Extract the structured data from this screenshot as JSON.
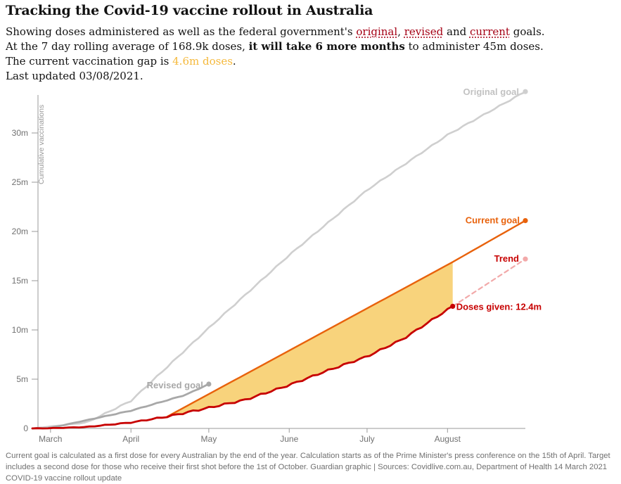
{
  "title": "Tracking the Covid-19 vaccine rollout in Australia",
  "subtitle": {
    "l1_pre": "Showing doses administered as well as the federal government's ",
    "l1_original": "original",
    "l1_sep": ", ",
    "l1_revised": "revised",
    "l1_and": " and ",
    "l1_current": "current",
    "l1_post": " goals.",
    "l2_pre": "At the 7 day rolling average of 168.9k doses, ",
    "l2_bold": "it will take 6 more months",
    "l2_post": " to administer 45m doses.",
    "l3_pre": "The current vaccination gap is ",
    "l3_gap": "4.6m doses",
    "l3_post": ".",
    "l4": "Last updated 03/08/2021."
  },
  "footnote": "Current goal is calculated as a first dose for every Australian by the end of the year. Calculation starts as of the Prime Minister's press conference on the 15th of April. Target includes a second dose for those who receive their first shot before the 1st of October. Guardian graphic | Sources: Covidlive.com.au, Department of Health 14 March 2021 COVID-19 vaccine rollout update",
  "colors": {
    "original": "#cfcfcf",
    "revised": "#a8a8a8",
    "current": "#e8620c",
    "doses": "#c70000",
    "trend": "#f2a9a9",
    "gap_fill": "#f8d37c",
    "gap_text": "#f5b93d"
  },
  "chart_data": {
    "type": "line",
    "ylabel": "Cumulative vaccinations",
    "xlabel": "",
    "y_tick_values": [
      0,
      5,
      10,
      15,
      20,
      25,
      30
    ],
    "y_tick_labels": [
      "0",
      "5m",
      "10m",
      "15m",
      "20m",
      "25m",
      "30m"
    ],
    "ylim": [
      0,
      34
    ],
    "x_ticks": [
      {
        "date": "2021-03-01",
        "label": "March"
      },
      {
        "date": "2021-04-01",
        "label": "April"
      },
      {
        "date": "2021-05-01",
        "label": "May"
      },
      {
        "date": "2021-06-01",
        "label": "June"
      },
      {
        "date": "2021-07-01",
        "label": "July"
      },
      {
        "date": "2021-08-01",
        "label": "August"
      }
    ],
    "xlim": [
      "2021-02-22",
      "2021-08-31"
    ],
    "series": [
      {
        "name": "Original goal",
        "key": "original",
        "style": "line",
        "x": [
          "2021-02-22",
          "2021-03-15",
          "2021-04-01",
          "2021-05-01",
          "2021-06-01",
          "2021-07-01",
          "2021-08-01",
          "2021-08-31"
        ],
        "y": [
          0,
          0.6,
          2.8,
          10.2,
          17.6,
          24.2,
          29.8,
          34.2
        ]
      },
      {
        "name": "Revised goal",
        "key": "revised",
        "style": "line",
        "x": [
          "2021-02-22",
          "2021-03-01",
          "2021-04-01",
          "2021-04-22",
          "2021-05-01"
        ],
        "y": [
          0,
          0.05,
          1.8,
          3.4,
          4.5
        ]
      },
      {
        "name": "Current goal",
        "key": "current",
        "style": "line",
        "x": [
          "2021-04-15",
          "2021-08-03",
          "2021-08-31"
        ],
        "y": [
          1.2,
          16.9,
          21.1
        ]
      },
      {
        "name": "Doses given",
        "key": "doses",
        "style": "line",
        "x": [
          "2021-02-22",
          "2021-03-01",
          "2021-03-15",
          "2021-04-01",
          "2021-04-15",
          "2021-05-01",
          "2021-05-15",
          "2021-06-01",
          "2021-06-15",
          "2021-07-01",
          "2021-07-15",
          "2021-08-03"
        ],
        "y": [
          0,
          0.02,
          0.15,
          0.6,
          1.2,
          2.1,
          2.9,
          4.4,
          5.8,
          7.3,
          9.1,
          12.4
        ]
      },
      {
        "name": "Trend",
        "key": "trend",
        "style": "dashed",
        "x": [
          "2021-08-03",
          "2021-08-31"
        ],
        "y": [
          12.4,
          17.2
        ]
      }
    ],
    "gap_area": {
      "from": "2021-04-15",
      "to": "2021-08-03"
    },
    "annotations": {
      "original": "Original goal",
      "revised": "Revised goal",
      "current": "Current goal",
      "trend": "Trend",
      "doses": "Doses given: 12.4m"
    }
  }
}
